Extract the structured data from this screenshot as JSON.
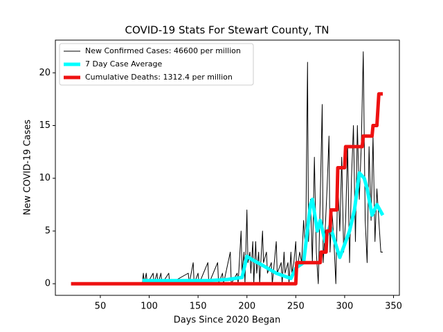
{
  "chart_data": {
    "type": "line",
    "title": "COVID-19 Stats For Stewart County, TN",
    "x_label": "Days Since 2020 Began",
    "y_label": "New COVID-19 Cases",
    "xlim": [
      4,
      356
    ],
    "ylim": [
      -1.1,
      23.1
    ],
    "xticks": [
      50,
      100,
      150,
      200,
      250,
      300,
      350
    ],
    "yticks": [
      0,
      5,
      10,
      15,
      20
    ],
    "legend": "upper left",
    "series": [
      {
        "name": "New Confirmed Cases: 46600 per million",
        "color": "#000000",
        "x": [
          93,
          94,
          95,
          97,
          98,
          104,
          105,
          108,
          109,
          112,
          113,
          120,
          121,
          140,
          141,
          145,
          146,
          150,
          151,
          160,
          161,
          170,
          171,
          175,
          176,
          183,
          184,
          190,
          191,
          194,
          195,
          197,
          198,
          200,
          201,
          203,
          204,
          206,
          207,
          209,
          210,
          212,
          213,
          216,
          217,
          220,
          221,
          225,
          226,
          230,
          231,
          235,
          236,
          238,
          239,
          242,
          243,
          245,
          246,
          248,
          250,
          251,
          254,
          256,
          258,
          260,
          262,
          263,
          265,
          267,
          269,
          271,
          273,
          275,
          277,
          278,
          280,
          282,
          284,
          285,
          287,
          289,
          291,
          293,
          295,
          297,
          299,
          301,
          303,
          305,
          307,
          309,
          311,
          313,
          315,
          317,
          319,
          321,
          323,
          325,
          327,
          329,
          331,
          333,
          335,
          337,
          339
        ],
        "values": [
          0,
          1,
          0,
          1,
          0,
          1,
          0,
          1,
          0,
          1,
          0,
          1,
          0,
          1,
          0,
          2,
          0,
          1,
          0,
          2,
          0,
          2,
          0,
          1,
          0,
          3,
          0,
          1,
          0,
          5,
          1,
          3,
          0,
          7,
          2,
          3,
          1,
          4,
          0,
          4,
          1,
          3,
          0,
          5,
          2,
          3,
          1,
          2,
          0,
          4,
          1,
          2,
          0,
          3,
          1,
          2,
          0,
          3,
          1,
          2,
          4,
          1,
          3,
          2,
          6,
          3,
          21,
          4,
          8,
          2,
          12,
          3,
          0,
          8,
          17,
          2,
          5,
          9,
          14,
          3,
          7,
          4,
          0,
          10,
          5,
          12,
          3,
          6,
          13,
          2,
          10,
          15,
          4,
          15,
          8,
          13,
          22,
          6,
          2,
          13,
          6,
          14,
          4,
          9,
          6,
          3,
          3
        ]
      },
      {
        "name": "7 Day Case Average",
        "color": "#00ffff",
        "x": [
          93,
          122,
          140,
          160,
          180,
          195,
          200,
          205,
          215,
          230,
          245,
          250,
          258,
          265,
          267,
          272,
          275,
          280,
          285,
          290,
          295,
          305,
          310,
          315,
          320,
          323,
          328,
          333,
          339
        ],
        "values": [
          0.3,
          0.3,
          0.3,
          0.3,
          0.4,
          0.6,
          2.6,
          2.3,
          1.8,
          1,
          0.5,
          1.5,
          2,
          7.5,
          8,
          5,
          6,
          4,
          5.5,
          4,
          2.5,
          5,
          7,
          10.5,
          10,
          9,
          6.5,
          7.5,
          6.5
        ]
      },
      {
        "name": "Cumulative Deaths: 1312.4 per million",
        "color": "#ee1111",
        "x": [
          20,
          250,
          251,
          275,
          276,
          281,
          282,
          285,
          286,
          292,
          293,
          300,
          301,
          318,
          319,
          328,
          329,
          333,
          335,
          339
        ],
        "values": [
          0,
          0,
          2,
          2,
          3,
          3,
          5,
          5,
          7,
          7,
          11,
          11,
          13,
          13,
          14,
          14,
          15,
          15,
          18,
          18
        ]
      }
    ]
  }
}
